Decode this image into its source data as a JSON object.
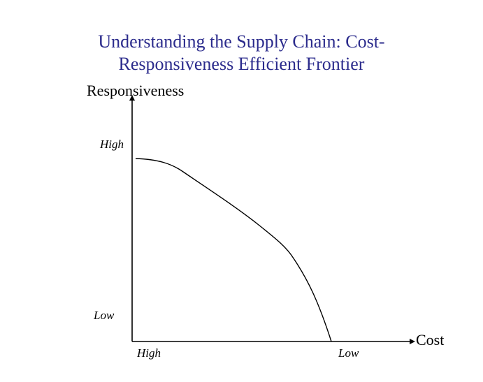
{
  "slide": {
    "title_line1": "Understanding the Supply Chain: Cost-",
    "title_line2": "Responsiveness Efficient Frontier"
  },
  "axes": {
    "y_label": "Responsiveness",
    "x_label": "Cost",
    "y_ticks": {
      "high": "High",
      "low": "Low"
    },
    "x_ticks": {
      "high": "High",
      "low": "Low"
    }
  },
  "colors": {
    "title": "#2b2b8c",
    "lines": "#000000"
  }
}
